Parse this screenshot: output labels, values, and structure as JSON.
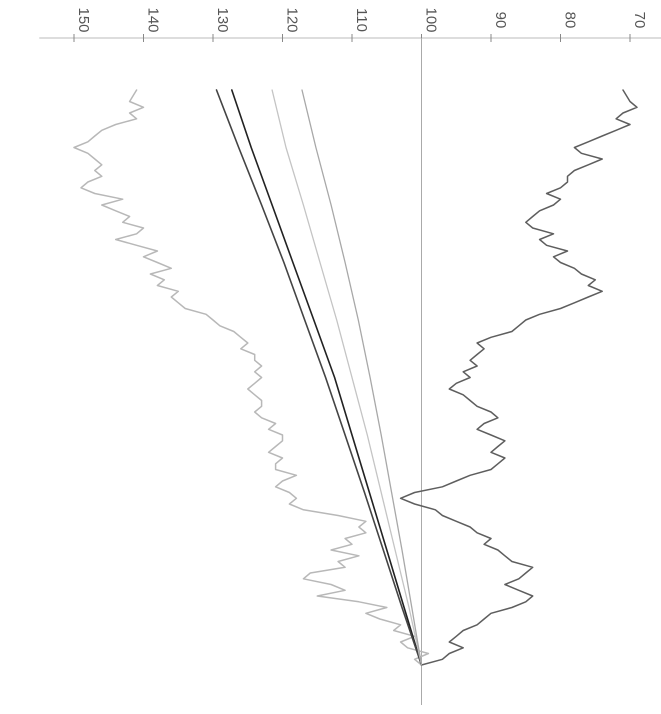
{
  "chart_data": {
    "type": "line",
    "title": "",
    "ylabel": "",
    "xlabel": "",
    "orientation": "rotated-90",
    "ylim": [
      65,
      155
    ],
    "ticks": [
      150,
      140,
      130,
      120,
      110,
      100,
      90,
      80,
      70
    ],
    "tick_labels": [
      "150",
      "140",
      "130",
      "120",
      "110",
      "100",
      "90",
      "80",
      "70"
    ],
    "reference_value": 100,
    "grid": false,
    "legend": "none",
    "series": [
      {
        "color": "#b8b8b8",
        "width": 1.5,
        "points": [
          [
            0,
            100
          ],
          [
            0.01,
            101
          ],
          [
            0.02,
            99
          ],
          [
            0.03,
            102
          ],
          [
            0.04,
            103
          ],
          [
            0.05,
            101
          ],
          [
            0.06,
            104
          ],
          [
            0.07,
            103
          ],
          [
            0.08,
            106
          ],
          [
            0.09,
            108
          ],
          [
            0.1,
            105
          ],
          [
            0.11,
            109
          ],
          [
            0.12,
            115
          ],
          [
            0.13,
            111
          ],
          [
            0.14,
            113
          ],
          [
            0.15,
            117
          ],
          [
            0.16,
            116
          ],
          [
            0.17,
            111
          ],
          [
            0.18,
            112
          ],
          [
            0.19,
            109
          ],
          [
            0.2,
            113
          ],
          [
            0.21,
            110
          ],
          [
            0.22,
            111
          ],
          [
            0.23,
            108
          ],
          [
            0.24,
            109
          ],
          [
            0.25,
            108
          ],
          [
            0.26,
            112
          ],
          [
            0.27,
            117
          ],
          [
            0.28,
            119
          ],
          [
            0.29,
            118
          ],
          [
            0.3,
            119
          ],
          [
            0.31,
            121
          ],
          [
            0.32,
            120
          ],
          [
            0.33,
            118
          ],
          [
            0.34,
            121
          ],
          [
            0.35,
            121
          ],
          [
            0.36,
            120
          ],
          [
            0.37,
            122
          ],
          [
            0.38,
            121
          ],
          [
            0.39,
            120
          ],
          [
            0.4,
            120
          ],
          [
            0.41,
            122
          ],
          [
            0.42,
            121
          ],
          [
            0.43,
            123
          ],
          [
            0.44,
            124
          ],
          [
            0.45,
            123
          ],
          [
            0.46,
            123
          ],
          [
            0.47,
            124
          ],
          [
            0.48,
            125
          ],
          [
            0.49,
            124
          ],
          [
            0.5,
            123
          ],
          [
            0.51,
            124
          ],
          [
            0.52,
            123
          ],
          [
            0.53,
            124
          ],
          [
            0.54,
            124
          ],
          [
            0.55,
            126
          ],
          [
            0.56,
            125
          ],
          [
            0.57,
            126
          ],
          [
            0.58,
            127
          ],
          [
            0.59,
            129
          ],
          [
            0.6,
            130
          ],
          [
            0.61,
            131
          ],
          [
            0.62,
            134
          ],
          [
            0.63,
            135
          ],
          [
            0.64,
            136
          ],
          [
            0.65,
            135
          ],
          [
            0.66,
            138
          ],
          [
            0.67,
            137
          ],
          [
            0.68,
            139
          ],
          [
            0.69,
            136
          ],
          [
            0.7,
            138
          ],
          [
            0.71,
            140
          ],
          [
            0.72,
            138
          ],
          [
            0.73,
            141
          ],
          [
            0.74,
            144
          ],
          [
            0.75,
            141
          ],
          [
            0.76,
            140
          ],
          [
            0.77,
            143
          ],
          [
            0.78,
            142
          ],
          [
            0.79,
            144
          ],
          [
            0.8,
            146
          ],
          [
            0.81,
            143
          ],
          [
            0.82,
            147
          ],
          [
            0.83,
            149
          ],
          [
            0.84,
            148
          ],
          [
            0.85,
            146
          ],
          [
            0.86,
            147
          ],
          [
            0.87,
            146
          ],
          [
            0.88,
            147
          ],
          [
            0.89,
            148
          ],
          [
            0.9,
            150
          ],
          [
            0.91,
            148
          ],
          [
            0.92,
            147
          ],
          [
            0.93,
            146
          ],
          [
            0.94,
            144
          ],
          [
            0.95,
            141
          ],
          [
            0.96,
            142
          ],
          [
            0.97,
            140
          ],
          [
            0.98,
            142
          ],
          [
            1.0,
            141
          ]
        ]
      },
      {
        "color": "#5e5e5e",
        "width": 1.5,
        "points": [
          [
            0,
            100
          ],
          [
            0.01,
            97
          ],
          [
            0.02,
            96
          ],
          [
            0.03,
            94
          ],
          [
            0.04,
            96
          ],
          [
            0.05,
            95
          ],
          [
            0.06,
            94
          ],
          [
            0.07,
            92
          ],
          [
            0.08,
            91
          ],
          [
            0.09,
            90
          ],
          [
            0.1,
            87
          ],
          [
            0.11,
            85
          ],
          [
            0.12,
            84
          ],
          [
            0.13,
            86
          ],
          [
            0.14,
            88
          ],
          [
            0.15,
            86
          ],
          [
            0.16,
            85
          ],
          [
            0.17,
            84
          ],
          [
            0.18,
            87
          ],
          [
            0.19,
            88
          ],
          [
            0.2,
            89
          ],
          [
            0.21,
            91
          ],
          [
            0.22,
            90
          ],
          [
            0.23,
            92
          ],
          [
            0.24,
            93
          ],
          [
            0.25,
            95
          ],
          [
            0.26,
            97
          ],
          [
            0.27,
            98
          ],
          [
            0.28,
            101
          ],
          [
            0.29,
            103
          ],
          [
            0.3,
            101
          ],
          [
            0.31,
            97
          ],
          [
            0.32,
            95
          ],
          [
            0.33,
            93
          ],
          [
            0.34,
            90
          ],
          [
            0.35,
            89
          ],
          [
            0.36,
            88
          ],
          [
            0.37,
            90
          ],
          [
            0.38,
            89
          ],
          [
            0.39,
            88
          ],
          [
            0.4,
            90
          ],
          [
            0.41,
            92
          ],
          [
            0.42,
            91
          ],
          [
            0.43,
            89
          ],
          [
            0.44,
            90
          ],
          [
            0.45,
            92
          ],
          [
            0.46,
            93
          ],
          [
            0.47,
            94
          ],
          [
            0.48,
            96
          ],
          [
            0.49,
            95
          ],
          [
            0.5,
            93
          ],
          [
            0.51,
            94
          ],
          [
            0.52,
            92
          ],
          [
            0.53,
            93
          ],
          [
            0.54,
            92
          ],
          [
            0.55,
            91
          ],
          [
            0.56,
            92
          ],
          [
            0.57,
            90
          ],
          [
            0.58,
            87
          ],
          [
            0.59,
            86
          ],
          [
            0.6,
            85
          ],
          [
            0.61,
            83
          ],
          [
            0.62,
            80
          ],
          [
            0.63,
            78
          ],
          [
            0.64,
            76
          ],
          [
            0.65,
            74
          ],
          [
            0.66,
            76
          ],
          [
            0.67,
            75
          ],
          [
            0.68,
            77
          ],
          [
            0.69,
            78
          ],
          [
            0.7,
            80
          ],
          [
            0.71,
            81
          ],
          [
            0.72,
            79
          ],
          [
            0.73,
            82
          ],
          [
            0.74,
            83
          ],
          [
            0.75,
            81
          ],
          [
            0.76,
            84
          ],
          [
            0.77,
            85
          ],
          [
            0.78,
            84
          ],
          [
            0.79,
            83
          ],
          [
            0.8,
            81
          ],
          [
            0.81,
            80
          ],
          [
            0.82,
            82
          ],
          [
            0.83,
            80
          ],
          [
            0.84,
            79
          ],
          [
            0.85,
            79
          ],
          [
            0.86,
            78
          ],
          [
            0.87,
            76
          ],
          [
            0.88,
            74
          ],
          [
            0.89,
            77
          ],
          [
            0.9,
            78
          ],
          [
            0.91,
            76
          ],
          [
            0.92,
            74
          ],
          [
            0.93,
            72
          ],
          [
            0.94,
            70
          ],
          [
            0.95,
            72
          ],
          [
            0.96,
            71
          ],
          [
            0.97,
            69
          ],
          [
            0.98,
            70
          ],
          [
            1.0,
            71
          ]
        ]
      },
      {
        "color": "#222222",
        "width": 1.6,
        "points": [
          [
            0,
            100
          ],
          [
            0.1,
            102.5
          ],
          [
            0.2,
            105
          ],
          [
            0.3,
            107.5
          ],
          [
            0.4,
            110
          ],
          [
            0.5,
            112.5
          ],
          [
            0.6,
            115.5
          ],
          [
            0.7,
            118.5
          ],
          [
            0.8,
            121.5
          ],
          [
            0.9,
            124.5
          ],
          [
            1.0,
            127.3
          ]
        ]
      },
      {
        "color": "#444444",
        "width": 1.6,
        "points": [
          [
            0,
            100
          ],
          [
            0.1,
            102.8
          ],
          [
            0.2,
            105.5
          ],
          [
            0.3,
            108.2
          ],
          [
            0.4,
            111
          ],
          [
            0.5,
            113.8
          ],
          [
            0.6,
            116.8
          ],
          [
            0.7,
            119.8
          ],
          [
            0.8,
            123
          ],
          [
            0.9,
            126.3
          ],
          [
            1.0,
            129.5
          ]
        ]
      },
      {
        "color": "#c4c4c4",
        "width": 1.3,
        "points": [
          [
            0,
            100
          ],
          [
            0.1,
            101.8
          ],
          [
            0.2,
            103.8
          ],
          [
            0.3,
            105.8
          ],
          [
            0.4,
            107.8
          ],
          [
            0.5,
            110
          ],
          [
            0.6,
            112.2
          ],
          [
            0.7,
            114.6
          ],
          [
            0.8,
            117
          ],
          [
            0.9,
            119.5
          ],
          [
            1.0,
            121.5
          ]
        ]
      },
      {
        "color": "#a8a8a8",
        "width": 1.3,
        "points": [
          [
            0,
            100
          ],
          [
            0.1,
            101.4
          ],
          [
            0.2,
            102.8
          ],
          [
            0.3,
            104.3
          ],
          [
            0.4,
            105.8
          ],
          [
            0.5,
            107.4
          ],
          [
            0.6,
            109.1
          ],
          [
            0.7,
            111
          ],
          [
            0.8,
            113
          ],
          [
            0.9,
            115.2
          ],
          [
            1.0,
            117.2
          ]
        ]
      }
    ]
  }
}
